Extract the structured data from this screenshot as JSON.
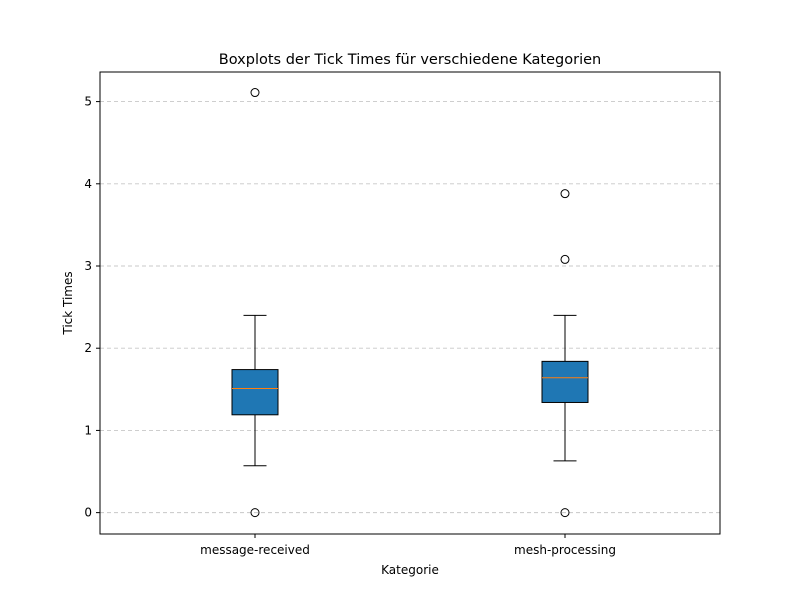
{
  "chart_data": {
    "type": "boxplot",
    "title": "Boxplots der Tick Times für verschiedene Kategorien",
    "xlabel": "Kategorie",
    "ylabel": "Tick Times",
    "categories": [
      "message-received",
      "mesh-processing"
    ],
    "boxes": [
      {
        "category": "message-received",
        "whisker_low": 0.57,
        "q1": 1.19,
        "median": 1.51,
        "q3": 1.74,
        "whisker_high": 2.4,
        "outliers": [
          5.11,
          0.0
        ]
      },
      {
        "category": "mesh-processing",
        "whisker_low": 0.63,
        "q1": 1.34,
        "median": 1.64,
        "q3": 1.84,
        "whisker_high": 2.4,
        "outliers": [
          3.88,
          3.08,
          0.0
        ]
      }
    ],
    "yticks": [
      0,
      1,
      2,
      3,
      4,
      5
    ],
    "ylim": [
      -0.26,
      5.36
    ],
    "grid": "horizontal-dashed",
    "colors": {
      "box_fill": "#1f77b4",
      "median": "#ff7f0e",
      "grid": "#c8c8c8",
      "edge": "#000000"
    }
  }
}
